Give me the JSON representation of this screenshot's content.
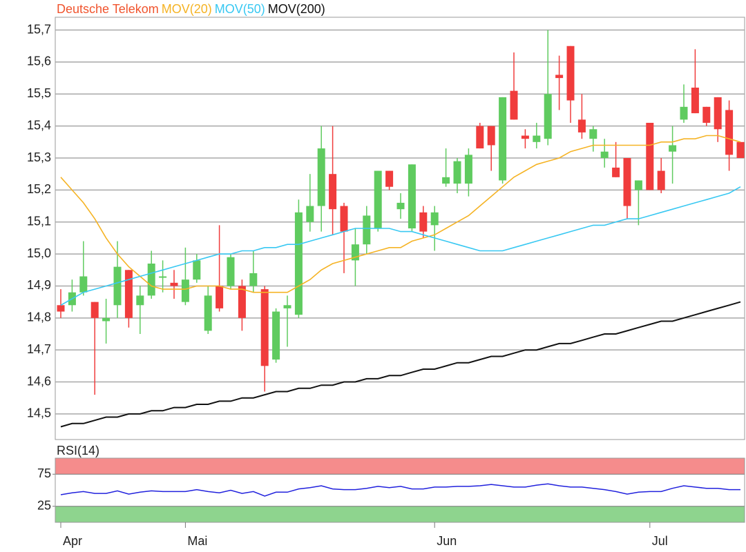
{
  "chart_data": [
    {
      "type": "candlestick",
      "categories": [
        "Apr",
        null,
        null,
        null,
        null,
        null,
        null,
        null,
        null,
        null,
        null,
        "Mai",
        null,
        null,
        null,
        null,
        null,
        null,
        null,
        null,
        null,
        null,
        null,
        null,
        null,
        null,
        null,
        null,
        null,
        null,
        null,
        null,
        null,
        "Jun",
        null,
        null,
        null,
        null,
        null,
        null,
        null,
        null,
        null,
        null,
        null,
        null,
        null,
        null,
        null,
        null,
        null,
        null,
        "Jul",
        null,
        null,
        null,
        null,
        null,
        null,
        null,
        null
      ],
      "series": [
        {
          "name": "Deutsche Telekom",
          "color": "#f0542e",
          "up_color": "#5fcb5f",
          "down_color": "#f03c3c",
          "open": [
            14.84,
            14.84,
            14.88,
            14.85,
            14.79,
            14.84,
            14.95,
            14.84,
            14.87,
            14.93,
            14.91,
            14.85,
            14.92,
            14.76,
            14.9,
            14.9,
            14.9,
            14.9,
            14.89,
            14.67,
            14.83,
            14.81,
            15.1,
            15.15,
            15.25,
            15.15,
            14.98,
            15.03,
            15.08,
            15.26,
            15.14,
            15.08,
            15.13,
            15.09,
            15.22,
            15.22,
            15.22,
            15.4,
            15.4,
            15.23,
            15.51,
            15.37,
            15.35,
            15.36,
            15.56,
            15.65,
            15.42,
            15.36,
            15.3,
            15.27,
            15.3,
            15.2,
            15.41,
            15.26,
            15.32,
            15.42,
            15.52,
            15.46,
            15.49,
            15.45,
            15.35
          ],
          "high": [
            14.89,
            14.92,
            15.04,
            14.85,
            14.86,
            15.04,
            14.95,
            14.9,
            15.01,
            14.98,
            14.95,
            15.02,
            15.0,
            14.9,
            15.09,
            15.0,
            14.92,
            15.01,
            14.9,
            14.83,
            14.87,
            15.17,
            15.25,
            15.4,
            15.4,
            15.16,
            15.08,
            15.15,
            15.26,
            15.26,
            15.19,
            15.28,
            15.15,
            15.15,
            15.33,
            15.3,
            15.33,
            15.41,
            15.4,
            15.49,
            15.63,
            15.39,
            15.41,
            15.7,
            15.62,
            15.65,
            15.5,
            15.4,
            15.36,
            15.35,
            15.3,
            15.23,
            15.41,
            15.3,
            15.4,
            15.53,
            15.64,
            15.46,
            15.49,
            15.48,
            15.35
          ],
          "low": [
            14.8,
            14.82,
            14.87,
            14.56,
            14.72,
            14.8,
            14.77,
            14.75,
            14.86,
            14.88,
            14.86,
            14.84,
            14.91,
            14.75,
            14.82,
            14.89,
            14.76,
            14.88,
            14.57,
            14.66,
            14.71,
            14.8,
            15.07,
            15.07,
            15.06,
            14.94,
            14.9,
            15.0,
            15.07,
            15.2,
            15.11,
            15.07,
            15.05,
            15.01,
            15.21,
            15.19,
            15.18,
            15.33,
            15.26,
            15.22,
            15.42,
            15.33,
            15.33,
            15.34,
            15.45,
            15.41,
            15.36,
            15.32,
            15.27,
            15.24,
            15.11,
            15.09,
            15.2,
            15.19,
            15.22,
            15.41,
            15.44,
            15.4,
            15.35,
            15.26,
            15.3
          ],
          "close": [
            14.82,
            14.88,
            14.93,
            14.8,
            14.8,
            14.96,
            14.8,
            14.87,
            14.97,
            14.93,
            14.9,
            14.92,
            14.98,
            14.87,
            14.83,
            14.99,
            14.8,
            14.94,
            14.65,
            14.82,
            14.84,
            15.13,
            15.15,
            15.33,
            15.14,
            15.07,
            15.03,
            15.12,
            15.26,
            15.21,
            15.16,
            15.28,
            15.07,
            15.13,
            15.24,
            15.29,
            15.31,
            15.33,
            15.34,
            15.49,
            15.42,
            15.36,
            15.37,
            15.5,
            15.55,
            15.48,
            15.38,
            15.39,
            15.32,
            15.24,
            15.15,
            15.23,
            15.2,
            15.2,
            15.34,
            15.46,
            15.44,
            15.41,
            15.39,
            15.31,
            15.3
          ]
        },
        {
          "name": "MOV(20)",
          "color": "#f5b324",
          "values": [
            15.24,
            15.2,
            15.16,
            15.11,
            15.05,
            15.0,
            14.96,
            14.93,
            14.9,
            14.89,
            14.89,
            14.89,
            14.9,
            14.9,
            14.9,
            14.89,
            14.89,
            14.88,
            14.88,
            14.88,
            14.88,
            14.9,
            14.92,
            14.95,
            14.97,
            14.98,
            14.99,
            15.0,
            15.01,
            15.02,
            15.02,
            15.04,
            15.05,
            15.06,
            15.08,
            15.1,
            15.12,
            15.15,
            15.18,
            15.21,
            15.24,
            15.26,
            15.28,
            15.29,
            15.3,
            15.32,
            15.33,
            15.34,
            15.34,
            15.34,
            15.34,
            15.34,
            15.34,
            15.35,
            15.35,
            15.36,
            15.36,
            15.37,
            15.37,
            15.36,
            15.35
          ]
        },
        {
          "name": "MOV(50)",
          "color": "#38c8f2",
          "values": [
            14.84,
            14.86,
            14.88,
            14.89,
            14.9,
            14.91,
            14.92,
            14.93,
            14.94,
            14.95,
            14.96,
            14.97,
            14.98,
            14.99,
            15.0,
            15.0,
            15.01,
            15.01,
            15.02,
            15.02,
            15.03,
            15.03,
            15.04,
            15.05,
            15.06,
            15.07,
            15.08,
            15.08,
            15.08,
            15.08,
            15.07,
            15.07,
            15.06,
            15.05,
            15.04,
            15.03,
            15.02,
            15.01,
            15.01,
            15.01,
            15.02,
            15.03,
            15.04,
            15.05,
            15.06,
            15.07,
            15.08,
            15.09,
            15.09,
            15.1,
            15.11,
            15.11,
            15.12,
            15.13,
            15.14,
            15.15,
            15.16,
            15.17,
            15.18,
            15.19,
            15.21
          ]
        },
        {
          "name": "MOV(200)",
          "color": "#111111",
          "values": [
            14.46,
            14.47,
            14.47,
            14.48,
            14.49,
            14.49,
            14.5,
            14.5,
            14.51,
            14.51,
            14.52,
            14.52,
            14.53,
            14.53,
            14.54,
            14.54,
            14.55,
            14.55,
            14.56,
            14.57,
            14.57,
            14.58,
            14.58,
            14.59,
            14.59,
            14.6,
            14.6,
            14.61,
            14.61,
            14.62,
            14.62,
            14.63,
            14.64,
            14.64,
            14.65,
            14.66,
            14.66,
            14.67,
            14.68,
            14.68,
            14.69,
            14.7,
            14.7,
            14.71,
            14.72,
            14.72,
            14.73,
            14.74,
            14.75,
            14.75,
            14.76,
            14.77,
            14.78,
            14.79,
            14.79,
            14.8,
            14.81,
            14.82,
            14.83,
            14.84,
            14.85
          ]
        }
      ],
      "ylim": [
        14.42,
        15.74
      ],
      "yticks": [
        {
          "value": 14.5,
          "label": "14,5"
        },
        {
          "value": 14.6,
          "label": "14,6"
        },
        {
          "value": 14.7,
          "label": "14,7"
        },
        {
          "value": 14.8,
          "label": "14,8"
        },
        {
          "value": 14.9,
          "label": "14,9"
        },
        {
          "value": 15.0,
          "label": "15,0"
        },
        {
          "value": 15.1,
          "label": "15,1"
        },
        {
          "value": 15.2,
          "label": "15,2"
        },
        {
          "value": 15.3,
          "label": "15,3"
        },
        {
          "value": 15.4,
          "label": "15,4"
        },
        {
          "value": 15.5,
          "label": "15,5"
        },
        {
          "value": 15.6,
          "label": "15,6"
        },
        {
          "value": 15.7,
          "label": "15,7"
        }
      ],
      "grid": true
    },
    {
      "type": "line",
      "title": "RSI(14)",
      "title_color": "#1a1acc",
      "series": [
        {
          "color": "#2020dd",
          "values": [
            43,
            46,
            48,
            45,
            45,
            49,
            44,
            47,
            49,
            48,
            48,
            48,
            51,
            48,
            46,
            50,
            45,
            48,
            41,
            47,
            47,
            52,
            54,
            57,
            52,
            51,
            51,
            53,
            56,
            54,
            56,
            52,
            52,
            55,
            55,
            56,
            56,
            57,
            59,
            57,
            55,
            55,
            58,
            60,
            57,
            55,
            55,
            53,
            51,
            48,
            44,
            47,
            48,
            48,
            53,
            57,
            55,
            53,
            53,
            51,
            51
          ]
        }
      ],
      "bands": [
        {
          "from": 75,
          "to": 100,
          "color": "#f58c8c"
        },
        {
          "from": 0,
          "to": 25,
          "color": "#8ed48e"
        }
      ],
      "ylim": [
        0,
        100
      ],
      "yticks": [
        25,
        75
      ]
    }
  ]
}
